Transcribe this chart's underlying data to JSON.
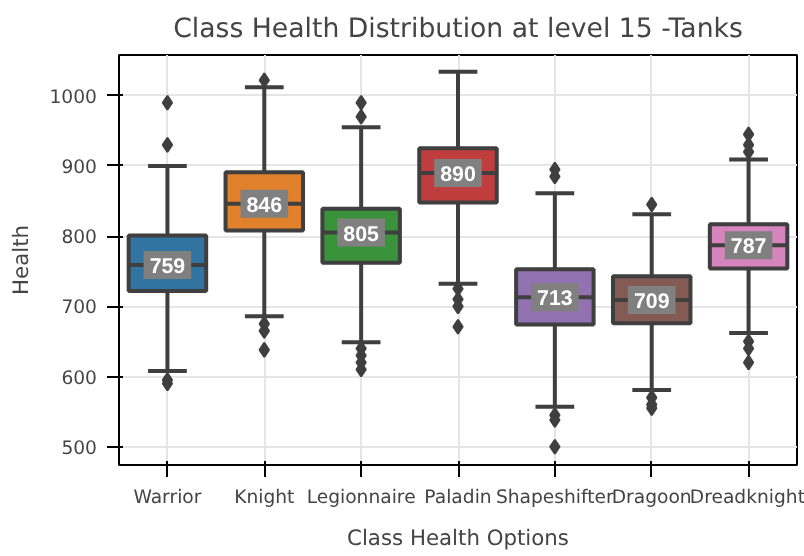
{
  "chart_data": {
    "type": "box",
    "title": "Class Health Distribution at level 15 -Tanks",
    "xlabel": "Class Health Options",
    "ylabel": "Health",
    "categories": [
      "Warrior",
      "Knight",
      "Legionnaire",
      "Paladin",
      "Shapeshifter",
      "Dragoon",
      "Dreadknight"
    ],
    "colors": [
      "#3274a1",
      "#e1812c",
      "#3a923a",
      "#c03d3e",
      "#9372b2",
      "#845b53",
      "#d684bd"
    ],
    "boxes": [
      {
        "low": 608,
        "q1": 722,
        "median": 759,
        "q3": 801,
        "high": 900,
        "outliers": [
          990,
          930,
          595,
          590
        ]
      },
      {
        "low": 686,
        "q1": 808,
        "median": 846,
        "q3": 891,
        "high": 1012,
        "outliers": [
          1022,
          675,
          665,
          638
        ]
      },
      {
        "low": 649,
        "q1": 762,
        "median": 805,
        "q3": 839,
        "high": 955,
        "outliers": [
          990,
          970,
          640,
          630,
          620,
          610
        ]
      },
      {
        "low": 732,
        "q1": 848,
        "median": 890,
        "q3": 925,
        "high": 1034,
        "outliers": [
          725,
          710,
          700,
          671
        ]
      },
      {
        "low": 557,
        "q1": 674,
        "median": 713,
        "q3": 753,
        "high": 861,
        "outliers": [
          895,
          885,
          545,
          538,
          500
        ]
      },
      {
        "low": 581,
        "q1": 676,
        "median": 709,
        "q3": 743,
        "high": 831,
        "outliers": [
          845,
          570,
          560,
          555
        ]
      },
      {
        "low": 662,
        "q1": 754,
        "median": 787,
        "q3": 817,
        "high": 909,
        "outliers": [
          945,
          930,
          920,
          650,
          640,
          620
        ]
      }
    ],
    "value_labels": [
      "759",
      "846",
      "805",
      "890",
      "713",
      "709",
      "787"
    ],
    "ylim": [
      474,
      1058
    ],
    "yticks": [
      500,
      600,
      700,
      800,
      900,
      1000
    ],
    "grid": true
  }
}
